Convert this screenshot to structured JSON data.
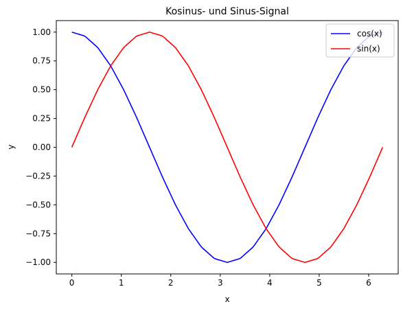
{
  "chart_data": {
    "type": "line",
    "title": "Kosinus- und Sinus-Signal",
    "xlabel": "x",
    "ylabel": "y",
    "xlim": [
      -0.314,
      6.597
    ],
    "ylim": [
      -1.1,
      1.1
    ],
    "x_ticks": [
      0,
      1,
      2,
      3,
      4,
      5,
      6
    ],
    "y_ticks": [
      -1.0,
      -0.75,
      -0.5,
      -0.25,
      0.0,
      0.25,
      0.5,
      0.75,
      1.0
    ],
    "x_tick_labels": [
      "0",
      "1",
      "2",
      "3",
      "4",
      "5",
      "6"
    ],
    "y_tick_labels": [
      "−1.00",
      "−0.75",
      "−0.50",
      "−0.25",
      "0.00",
      "0.25",
      "0.50",
      "0.75",
      "1.00"
    ],
    "grid": false,
    "legend_position": "top-right",
    "series": [
      {
        "name": "cos(x)",
        "color": "#0000ff",
        "x": [
          0,
          0.2618,
          0.5236,
          0.7854,
          1.0472,
          1.309,
          1.5708,
          1.8326,
          2.0944,
          2.3562,
          2.618,
          2.8798,
          3.1416,
          3.4034,
          3.6652,
          3.927,
          4.1888,
          4.4506,
          4.7124,
          4.9742,
          5.236,
          5.4978,
          5.7596,
          6.0214,
          6.2832
        ],
        "values": [
          1.0,
          0.966,
          0.866,
          0.707,
          0.5,
          0.259,
          0.0,
          -0.259,
          -0.5,
          -0.707,
          -0.866,
          -0.966,
          -1.0,
          -0.966,
          -0.866,
          -0.707,
          -0.5,
          -0.259,
          0.0,
          0.259,
          0.5,
          0.707,
          0.866,
          0.966,
          1.0
        ]
      },
      {
        "name": "sin(x)",
        "color": "#ff0000",
        "x": [
          0,
          0.2618,
          0.5236,
          0.7854,
          1.0472,
          1.309,
          1.5708,
          1.8326,
          2.0944,
          2.3562,
          2.618,
          2.8798,
          3.1416,
          3.4034,
          3.6652,
          3.927,
          4.1888,
          4.4506,
          4.7124,
          4.9742,
          5.236,
          5.4978,
          5.7596,
          6.0214,
          6.2832
        ],
        "values": [
          0.0,
          0.259,
          0.5,
          0.707,
          0.866,
          0.966,
          1.0,
          0.966,
          0.866,
          0.707,
          0.5,
          0.259,
          0.0,
          -0.259,
          -0.5,
          -0.707,
          -0.866,
          -0.966,
          -1.0,
          -0.966,
          -0.866,
          -0.707,
          -0.5,
          -0.259,
          0.0
        ]
      }
    ]
  }
}
